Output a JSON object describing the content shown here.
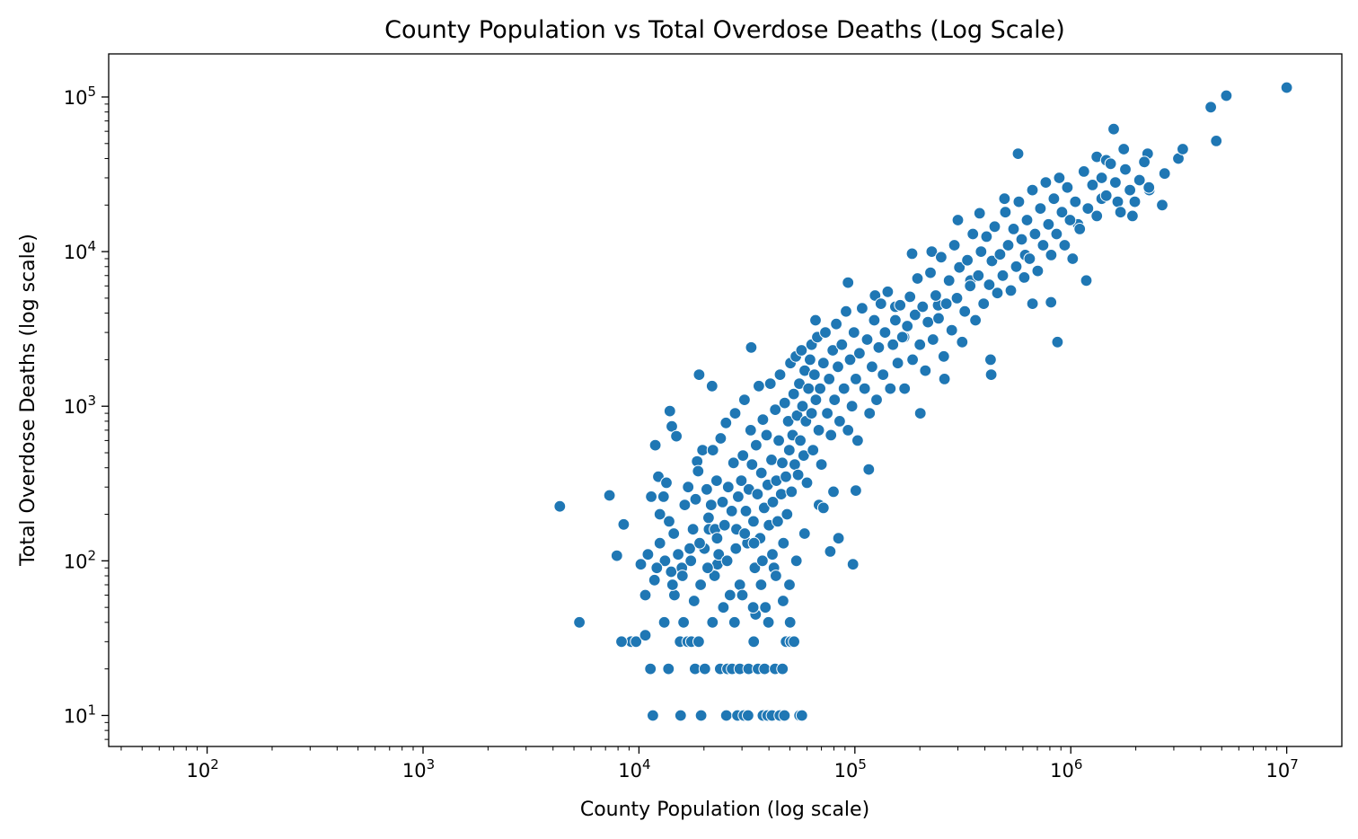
{
  "chart_data": {
    "type": "scatter",
    "title": "County Population vs Total Overdose Deaths (Log Scale)",
    "xlabel": "County Population (log scale)",
    "ylabel": "Total Overdose Deaths (log scale)",
    "x_scale": "log",
    "y_scale": "log",
    "xlim": [
      35,
      18000000
    ],
    "ylim": [
      6.3,
      190000
    ],
    "x_major_ticks": [
      {
        "value": 100,
        "base": "10",
        "exp": "2"
      },
      {
        "value": 1000,
        "base": "10",
        "exp": "3"
      },
      {
        "value": 10000,
        "base": "10",
        "exp": "4"
      },
      {
        "value": 100000,
        "base": "10",
        "exp": "5"
      },
      {
        "value": 1000000,
        "base": "10",
        "exp": "6"
      },
      {
        "value": 10000000,
        "base": "10",
        "exp": "7"
      }
    ],
    "y_major_ticks": [
      {
        "value": 10,
        "base": "10",
        "exp": "1"
      },
      {
        "value": 100,
        "base": "10",
        "exp": "2"
      },
      {
        "value": 1000,
        "base": "10",
        "exp": "3"
      },
      {
        "value": 10000,
        "base": "10",
        "exp": "4"
      },
      {
        "value": 100000,
        "base": "10",
        "exp": "5"
      }
    ],
    "grid": false,
    "legend": "none",
    "point_color": "#1f77b4",
    "point_edge_color": "#ffffff",
    "points": [
      [
        4300,
        225
      ],
      [
        5300,
        40
      ],
      [
        7300,
        265
      ],
      [
        7900,
        108
      ],
      [
        8500,
        172
      ],
      [
        9200,
        30
      ],
      [
        8300,
        30
      ],
      [
        9700,
        30
      ],
      [
        10200,
        95
      ],
      [
        10700,
        60
      ],
      [
        10700,
        33
      ],
      [
        11000,
        110
      ],
      [
        11300,
        20
      ],
      [
        11400,
        260
      ],
      [
        11600,
        10
      ],
      [
        11800,
        75
      ],
      [
        11900,
        560
      ],
      [
        12300,
        350
      ],
      [
        12500,
        130
      ],
      [
        13100,
        40
      ],
      [
        13400,
        320
      ],
      [
        13700,
        20
      ],
      [
        13900,
        930
      ],
      [
        14100,
        85
      ],
      [
        14200,
        740
      ],
      [
        14900,
        640
      ],
      [
        15500,
        30
      ],
      [
        15600,
        10
      ],
      [
        16800,
        30
      ],
      [
        17500,
        30
      ],
      [
        18000,
        55
      ],
      [
        18200,
        20
      ],
      [
        18600,
        440
      ],
      [
        19000,
        1600
      ],
      [
        19400,
        10
      ],
      [
        20200,
        20
      ],
      [
        21000,
        190
      ],
      [
        21800,
        1350
      ],
      [
        22100,
        90
      ],
      [
        22400,
        80
      ],
      [
        23100,
        95
      ],
      [
        23800,
        20
      ],
      [
        25400,
        10
      ],
      [
        25700,
        20
      ],
      [
        27000,
        20
      ],
      [
        28600,
        10
      ],
      [
        29300,
        20
      ],
      [
        30600,
        10
      ],
      [
        32000,
        10
      ],
      [
        32200,
        20
      ],
      [
        33100,
        2400
      ],
      [
        34000,
        30
      ],
      [
        34700,
        45
      ],
      [
        35600,
        20
      ],
      [
        37500,
        10
      ],
      [
        38200,
        20
      ],
      [
        39400,
        10
      ],
      [
        41300,
        10
      ],
      [
        42700,
        20
      ],
      [
        44900,
        10
      ],
      [
        46200,
        20
      ],
      [
        47200,
        10
      ],
      [
        48000,
        30
      ],
      [
        50100,
        40
      ],
      [
        50500,
        30
      ],
      [
        52300,
        30
      ],
      [
        55400,
        10
      ],
      [
        56800,
        10
      ],
      [
        58500,
        150
      ],
      [
        63000,
        2500
      ],
      [
        65700,
        3600
      ],
      [
        68200,
        230
      ],
      [
        71500,
        220
      ],
      [
        76900,
        115
      ],
      [
        79600,
        280
      ],
      [
        84000,
        140
      ],
      [
        93000,
        6300
      ],
      [
        98000,
        95
      ],
      [
        101000,
        285
      ],
      [
        116000,
        390
      ],
      [
        124000,
        5200
      ],
      [
        154000,
        4400
      ],
      [
        169000,
        2800
      ],
      [
        184000,
        9700
      ],
      [
        201000,
        900
      ],
      [
        227000,
        10000
      ],
      [
        243000,
        4500
      ],
      [
        260000,
        1500
      ],
      [
        300000,
        16000
      ],
      [
        343000,
        6500
      ],
      [
        378000,
        17700
      ],
      [
        425000,
        2000
      ],
      [
        428000,
        1600
      ],
      [
        493000,
        22000
      ],
      [
        570000,
        43000
      ],
      [
        615000,
        9500
      ],
      [
        665000,
        4600
      ],
      [
        810000,
        4700
      ],
      [
        868000,
        2600
      ],
      [
        1080000,
        15000
      ],
      [
        1180000,
        6500
      ],
      [
        1320000,
        41000
      ],
      [
        1390000,
        22000
      ],
      [
        1460000,
        39000
      ],
      [
        1580000,
        62000
      ],
      [
        1650000,
        21000
      ],
      [
        1760000,
        46000
      ],
      [
        1930000,
        17000
      ],
      [
        2270000,
        43000
      ],
      [
        2310000,
        25000
      ],
      [
        2650000,
        20000
      ],
      [
        2720000,
        32000
      ],
      [
        3150000,
        40000
      ],
      [
        3300000,
        46000
      ],
      [
        4450000,
        86000
      ],
      [
        4720000,
        52000
      ],
      [
        5250000,
        102000
      ],
      [
        10000000,
        115000
      ],
      [
        12500,
        200
      ],
      [
        13000,
        260
      ],
      [
        13800,
        180
      ],
      [
        14500,
        150
      ],
      [
        15200,
        110
      ],
      [
        15800,
        90
      ],
      [
        16300,
        230
      ],
      [
        16900,
        300
      ],
      [
        17200,
        120
      ],
      [
        17800,
        160
      ],
      [
        18300,
        250
      ],
      [
        18800,
        380
      ],
      [
        19300,
        70
      ],
      [
        19700,
        520
      ],
      [
        20100,
        120
      ],
      [
        20600,
        290
      ],
      [
        21100,
        160
      ],
      [
        21600,
        230
      ],
      [
        22000,
        520
      ],
      [
        22500,
        160
      ],
      [
        22900,
        330
      ],
      [
        23400,
        110
      ],
      [
        23900,
        620
      ],
      [
        24400,
        240
      ],
      [
        24900,
        170
      ],
      [
        25300,
        780
      ],
      [
        25900,
        300
      ],
      [
        26400,
        60
      ],
      [
        26900,
        210
      ],
      [
        27400,
        430
      ],
      [
        27900,
        900
      ],
      [
        28300,
        160
      ],
      [
        28800,
        260
      ],
      [
        29300,
        70
      ],
      [
        29800,
        330
      ],
      [
        30300,
        480
      ],
      [
        30800,
        1100
      ],
      [
        31300,
        210
      ],
      [
        31800,
        130
      ],
      [
        32300,
        290
      ],
      [
        32900,
        700
      ],
      [
        33400,
        420
      ],
      [
        33900,
        180
      ],
      [
        34400,
        90
      ],
      [
        34900,
        560
      ],
      [
        35400,
        270
      ],
      [
        35900,
        1350
      ],
      [
        36400,
        140
      ],
      [
        36900,
        370
      ],
      [
        37500,
        820
      ],
      [
        38000,
        220
      ],
      [
        38500,
        50
      ],
      [
        39000,
        650
      ],
      [
        39500,
        310
      ],
      [
        40000,
        170
      ],
      [
        40600,
        1400
      ],
      [
        41100,
        450
      ],
      [
        41700,
        240
      ],
      [
        42200,
        90
      ],
      [
        42800,
        950
      ],
      [
        43300,
        330
      ],
      [
        43900,
        180
      ],
      [
        44400,
        600
      ],
      [
        45000,
        1600
      ],
      [
        45600,
        270
      ],
      [
        46100,
        430
      ],
      [
        46700,
        130
      ],
      [
        47300,
        1050
      ],
      [
        47900,
        350
      ],
      [
        48500,
        200
      ],
      [
        49100,
        800
      ],
      [
        49700,
        520
      ],
      [
        50300,
        1900
      ],
      [
        50900,
        280
      ],
      [
        51500,
        650
      ],
      [
        52100,
        1200
      ],
      [
        52700,
        420
      ],
      [
        53300,
        2100
      ],
      [
        54000,
        870
      ],
      [
        54600,
        360
      ],
      [
        55300,
        1400
      ],
      [
        55900,
        600
      ],
      [
        56600,
        2300
      ],
      [
        57200,
        1000
      ],
      [
        57900,
        480
      ],
      [
        58600,
        1700
      ],
      [
        59300,
        800
      ],
      [
        60000,
        320
      ],
      [
        61000,
        1300
      ],
      [
        62000,
        2000
      ],
      [
        63000,
        900
      ],
      [
        64000,
        520
      ],
      [
        65000,
        1600
      ],
      [
        66000,
        1100
      ],
      [
        67000,
        2800
      ],
      [
        68000,
        700
      ],
      [
        69000,
        1300
      ],
      [
        70000,
        420
      ],
      [
        71500,
        1900
      ],
      [
        73000,
        3000
      ],
      [
        74500,
        900
      ],
      [
        76000,
        1500
      ],
      [
        77500,
        650
      ],
      [
        79000,
        2300
      ],
      [
        80500,
        1100
      ],
      [
        82000,
        3400
      ],
      [
        83500,
        1800
      ],
      [
        85000,
        800
      ],
      [
        87000,
        2500
      ],
      [
        89000,
        1300
      ],
      [
        91000,
        4100
      ],
      [
        93000,
        700
      ],
      [
        95000,
        2000
      ],
      [
        97000,
        1000
      ],
      [
        99000,
        3000
      ],
      [
        101000,
        1500
      ],
      [
        103000,
        600
      ],
      [
        105000,
        2200
      ],
      [
        108000,
        4300
      ],
      [
        111000,
        1300
      ],
      [
        114000,
        2700
      ],
      [
        117000,
        900
      ],
      [
        120000,
        1800
      ],
      [
        123000,
        3600
      ],
      [
        126000,
        1100
      ],
      [
        129000,
        2400
      ],
      [
        132000,
        4600
      ],
      [
        135000,
        1600
      ],
      [
        138000,
        3000
      ],
      [
        142000,
        5500
      ],
      [
        146000,
        1300
      ],
      [
        150000,
        2500
      ],
      [
        154000,
        3600
      ],
      [
        158000,
        1900
      ],
      [
        162000,
        4500
      ],
      [
        166000,
        2800
      ],
      [
        170000,
        1300
      ],
      [
        175000,
        3300
      ],
      [
        180000,
        5100
      ],
      [
        185000,
        2000
      ],
      [
        190000,
        3900
      ],
      [
        195000,
        6700
      ],
      [
        200000,
        2500
      ],
      [
        206000,
        4400
      ],
      [
        212000,
        1700
      ],
      [
        218000,
        3500
      ],
      [
        224000,
        7300
      ],
      [
        230000,
        2700
      ],
      [
        237000,
        5200
      ],
      [
        244000,
        3700
      ],
      [
        251000,
        9200
      ],
      [
        258000,
        2100
      ],
      [
        265000,
        4600
      ],
      [
        273000,
        6500
      ],
      [
        281000,
        3100
      ],
      [
        289000,
        11000
      ],
      [
        297000,
        5000
      ],
      [
        305000,
        7900
      ],
      [
        314000,
        2600
      ],
      [
        323000,
        4100
      ],
      [
        332000,
        8800
      ],
      [
        342000,
        6000
      ],
      [
        352000,
        13000
      ],
      [
        362000,
        3600
      ],
      [
        373000,
        7000
      ],
      [
        384000,
        10000
      ],
      [
        395000,
        4600
      ],
      [
        407000,
        12500
      ],
      [
        419000,
        6100
      ],
      [
        431000,
        8700
      ],
      [
        444000,
        14500
      ],
      [
        457000,
        5400
      ],
      [
        470000,
        9600
      ],
      [
        484000,
        7000
      ],
      [
        498000,
        18000
      ],
      [
        513000,
        11000
      ],
      [
        528000,
        5600
      ],
      [
        543000,
        14000
      ],
      [
        559000,
        8000
      ],
      [
        575000,
        21000
      ],
      [
        592000,
        12000
      ],
      [
        609000,
        6800
      ],
      [
        627000,
        16000
      ],
      [
        645000,
        9000
      ],
      [
        664000,
        25000
      ],
      [
        683000,
        13000
      ],
      [
        703000,
        7500
      ],
      [
        723000,
        19000
      ],
      [
        744000,
        11000
      ],
      [
        766000,
        28000
      ],
      [
        788000,
        15000
      ],
      [
        811000,
        9500
      ],
      [
        835000,
        22000
      ],
      [
        859000,
        13000
      ],
      [
        884000,
        30000
      ],
      [
        910000,
        18000
      ],
      [
        937000,
        11000
      ],
      [
        964000,
        26000
      ],
      [
        992000,
        16000
      ],
      [
        1020000,
        9000
      ],
      [
        1050000,
        21000
      ],
      [
        1100000,
        14000
      ],
      [
        1150000,
        33000
      ],
      [
        1200000,
        19000
      ],
      [
        1260000,
        27000
      ],
      [
        1320000,
        17000
      ],
      [
        1390000,
        30000
      ],
      [
        1460000,
        23000
      ],
      [
        1530000,
        37000
      ],
      [
        1610000,
        28000
      ],
      [
        1700000,
        18000
      ],
      [
        1790000,
        34000
      ],
      [
        1880000,
        25000
      ],
      [
        1980000,
        21000
      ],
      [
        2080000,
        29000
      ],
      [
        2190000,
        38000
      ],
      [
        2300000,
        26000
      ],
      [
        14600,
        60
      ],
      [
        16100,
        40
      ],
      [
        18900,
        30
      ],
      [
        21900,
        40
      ],
      [
        24600,
        50
      ],
      [
        27700,
        40
      ],
      [
        30100,
        60
      ],
      [
        33800,
        50
      ],
      [
        36800,
        70
      ],
      [
        39800,
        40
      ],
      [
        43100,
        80
      ],
      [
        46500,
        55
      ],
      [
        49800,
        70
      ],
      [
        53600,
        100
      ],
      [
        41500,
        110
      ],
      [
        37300,
        100
      ],
      [
        34100,
        130
      ],
      [
        30900,
        150
      ],
      [
        28100,
        120
      ],
      [
        25600,
        100
      ],
      [
        23000,
        140
      ],
      [
        20800,
        90
      ],
      [
        19100,
        130
      ],
      [
        17400,
        100
      ],
      [
        15900,
        80
      ],
      [
        14300,
        70
      ],
      [
        13200,
        100
      ],
      [
        12100,
        90
      ]
    ]
  }
}
